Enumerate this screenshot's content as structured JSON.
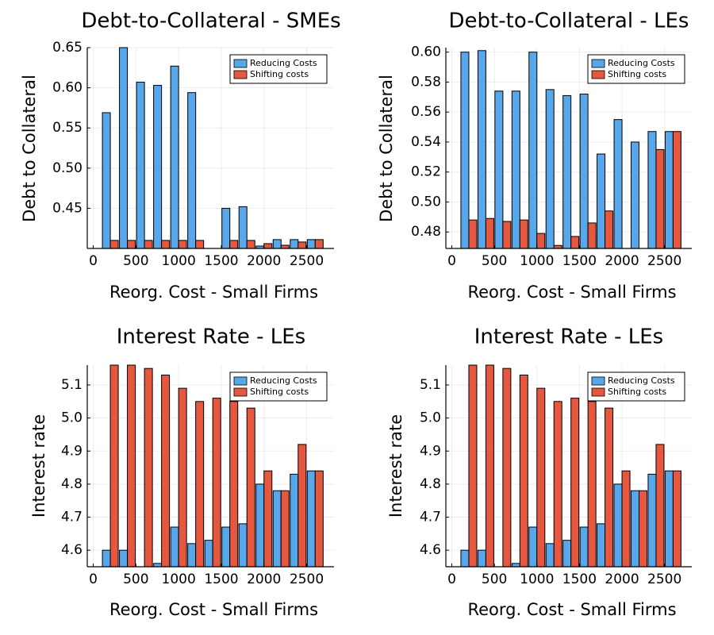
{
  "colors": {
    "reducing": "#58a7ea",
    "shifting": "#e5583f"
  },
  "legend": [
    "Reducing Costs",
    "Shifting costs"
  ],
  "chart_data": [
    {
      "type": "bar",
      "title": "Debt-to-Collateral - SMEs",
      "xlabel": "Reorg. Cost - Small Firms",
      "ylabel": "Debt to Collateral",
      "xlim": [
        -70,
        2820
      ],
      "ylim": [
        0.4,
        0.65
      ],
      "xticks": [
        0,
        500,
        1000,
        1500,
        2000,
        2500
      ],
      "yticks": [
        0.45,
        0.5,
        0.55,
        0.6,
        0.65
      ],
      "ytick_labels": [
        "0.45",
        "0.50",
        "0.55",
        "0.60",
        "0.65"
      ],
      "legend_placement": "top-right",
      "grid": true,
      "x": [
        200,
        400,
        600,
        800,
        1000,
        1200,
        1400,
        1600,
        1800,
        2000,
        2200,
        2400,
        2600
      ],
      "series": [
        {
          "name": "Reducing Costs",
          "values": [
            0.569,
            0.65,
            0.607,
            0.603,
            0.627,
            0.594,
            null,
            0.45,
            0.452,
            0.403,
            0.411,
            0.411,
            0.411
          ]
        },
        {
          "name": "Shifting costs",
          "values": [
            0.41,
            0.41,
            0.41,
            0.41,
            0.41,
            0.41,
            null,
            0.41,
            0.41,
            0.406,
            0.404,
            0.408,
            0.411
          ]
        }
      ]
    },
    {
      "type": "bar",
      "title": "Debt-to-Collateral - LEs",
      "xlabel": "Reorg. Cost - Small Firms",
      "ylabel": "Debt to Collateral",
      "xlim": [
        -70,
        2820
      ],
      "ylim": [
        0.469,
        0.603
      ],
      "xticks": [
        0,
        500,
        1000,
        1500,
        2000,
        2500
      ],
      "yticks": [
        0.48,
        0.5,
        0.52,
        0.54,
        0.56,
        0.58,
        0.6
      ],
      "ytick_labels": [
        "0.48",
        "0.50",
        "0.52",
        "0.54",
        "0.56",
        "0.58",
        "0.60"
      ],
      "legend_placement": "top-right",
      "grid": true,
      "x": [
        200,
        400,
        600,
        800,
        1000,
        1200,
        1400,
        1600,
        1800,
        2000,
        2200,
        2400,
        2600
      ],
      "series": [
        {
          "name": "Reducing Costs",
          "values": [
            0.6,
            0.601,
            0.574,
            0.574,
            0.6,
            0.575,
            0.571,
            0.572,
            0.532,
            0.555,
            0.54,
            0.547,
            0.547
          ]
        },
        {
          "name": "Shifting costs",
          "values": [
            0.488,
            0.489,
            0.487,
            0.488,
            0.479,
            0.471,
            0.477,
            0.486,
            0.494,
            null,
            null,
            0.535,
            0.547
          ]
        }
      ]
    },
    {
      "type": "bar",
      "title": "Interest Rate - LEs",
      "xlabel": "Reorg. Cost - Small Firms",
      "ylabel": "Interest rate",
      "xlim": [
        -70,
        2820
      ],
      "ylim": [
        4.55,
        5.16
      ],
      "xticks": [
        0,
        500,
        1000,
        1500,
        2000,
        2500
      ],
      "yticks": [
        4.6,
        4.7,
        4.8,
        4.9,
        5.0,
        5.1
      ],
      "ytick_labels": [
        "4.6",
        "4.7",
        "4.8",
        "4.9",
        "5.0",
        "5.1"
      ],
      "legend_placement": "top-right",
      "grid": true,
      "x": [
        200,
        400,
        600,
        800,
        1000,
        1200,
        1400,
        1600,
        1800,
        2000,
        2200,
        2400,
        2600
      ],
      "series": [
        {
          "name": "Reducing Costs",
          "values": [
            4.6,
            4.6,
            null,
            4.56,
            4.67,
            4.62,
            4.63,
            4.67,
            4.68,
            4.8,
            4.78,
            4.83,
            4.84
          ]
        },
        {
          "name": "Shifting costs",
          "values": [
            5.16,
            5.16,
            5.15,
            5.13,
            5.09,
            5.05,
            5.06,
            5.05,
            5.03,
            4.84,
            4.78,
            4.92,
            4.84
          ]
        }
      ]
    },
    {
      "type": "bar",
      "title": "Interest Rate - LEs",
      "xlabel": "Reorg. Cost - Small Firms",
      "ylabel": "Interest rate",
      "xlim": [
        -70,
        2820
      ],
      "ylim": [
        4.55,
        5.16
      ],
      "xticks": [
        0,
        500,
        1000,
        1500,
        2000,
        2500
      ],
      "yticks": [
        4.6,
        4.7,
        4.8,
        4.9,
        5.0,
        5.1
      ],
      "ytick_labels": [
        "4.6",
        "4.7",
        "4.8",
        "4.9",
        "5.0",
        "5.1"
      ],
      "legend_placement": "top-right",
      "grid": true,
      "x": [
        200,
        400,
        600,
        800,
        1000,
        1200,
        1400,
        1600,
        1800,
        2000,
        2200,
        2400,
        2600
      ],
      "series": [
        {
          "name": "Reducing Costs",
          "values": [
            4.6,
            4.6,
            null,
            4.56,
            4.67,
            4.62,
            4.63,
            4.67,
            4.68,
            4.8,
            4.78,
            4.83,
            4.84
          ]
        },
        {
          "name": "Shifting costs",
          "values": [
            5.16,
            5.16,
            5.15,
            5.13,
            5.09,
            5.05,
            5.06,
            5.05,
            5.03,
            4.84,
            4.78,
            4.92,
            4.84
          ]
        }
      ]
    }
  ]
}
